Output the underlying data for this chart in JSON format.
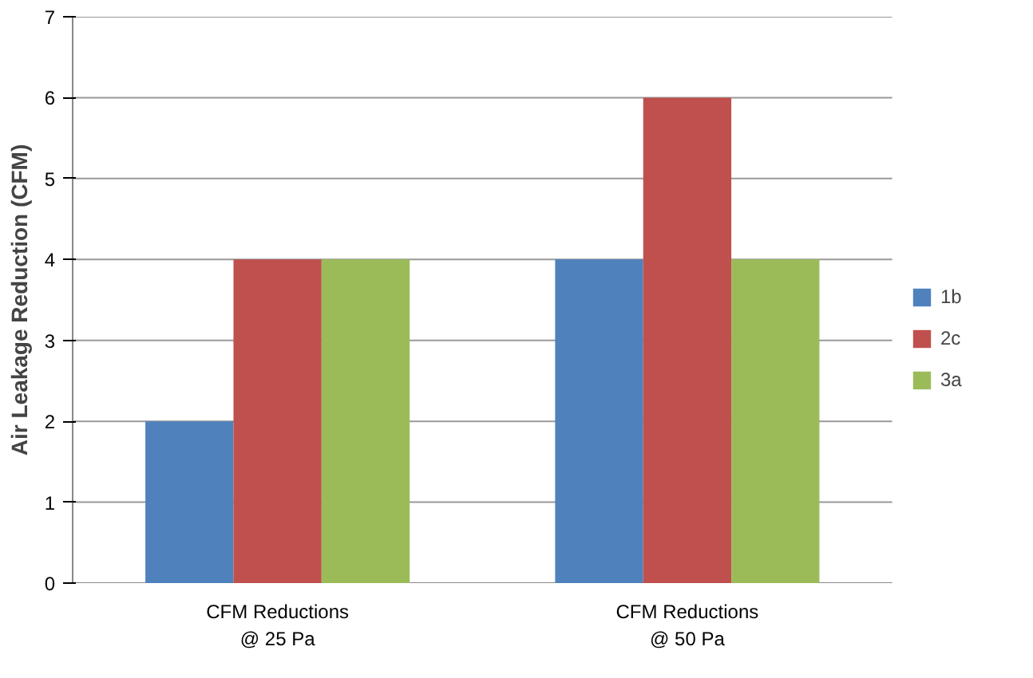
{
  "chart_data": {
    "type": "bar",
    "ylabel": "Air Leakage Reduction (CFM)",
    "categories": [
      "CFM Reductions\n@ 25 Pa",
      "CFM Reductions\n@ 50 Pa"
    ],
    "series": [
      {
        "name": "1b",
        "color": "#4f81bd",
        "values": [
          2,
          4
        ]
      },
      {
        "name": "2c",
        "color": "#c0504d",
        "values": [
          4,
          6
        ]
      },
      {
        "name": "3a",
        "color": "#9bbb59",
        "values": [
          4,
          4
        ]
      }
    ],
    "ylim": [
      0,
      7
    ],
    "yticks": [
      0,
      1,
      2,
      3,
      4,
      5,
      6,
      7
    ],
    "grid": "y",
    "legend": "right"
  }
}
